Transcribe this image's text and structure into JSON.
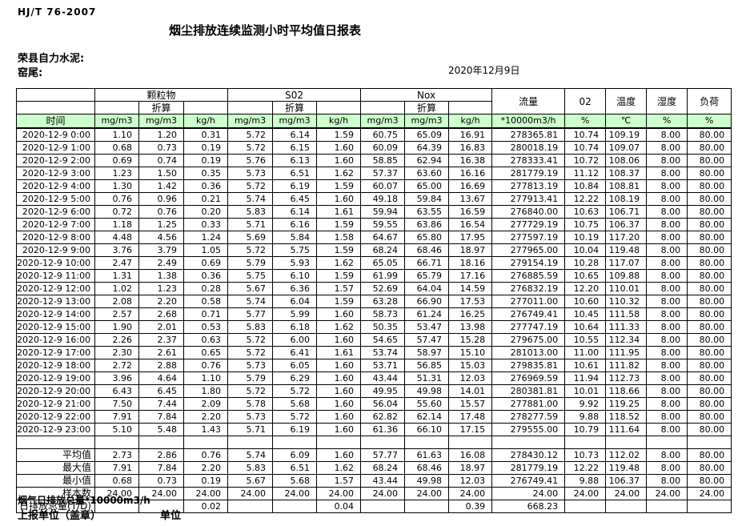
{
  "page": {
    "standard": "HJ/T  76-2007",
    "title": "烟尘排放连续监测小时平均值日报表",
    "company": "荣县自力水泥:",
    "location": "窑尾:",
    "date": "2020年12月9日",
    "footer_total_label": "烟气日排放总量*10000m3/h",
    "footer_report_unit": "上报单位（盖章）",
    "footer_unit": "单位"
  },
  "colors": {
    "header_green": "#ccffcc",
    "border": "#000000"
  },
  "table": {
    "header": {
      "time_label": "时间",
      "groups": [
        "颗粒物",
        "S02",
        "Nox"
      ],
      "converted": "折算",
      "flow": "流量",
      "o2": "02",
      "temperature": "温度",
      "humidity": "湿度",
      "load": "负荷",
      "units": [
        "mg/m3",
        "mg/m3",
        "kg/h",
        "mg/m3",
        "mg/m3",
        "kg/h",
        "mg/m3",
        "mg/m3",
        "kg/h",
        "*10000m3/h",
        "%",
        "℃",
        "%",
        "%"
      ]
    },
    "rows": [
      {
        "time": "2020-12-9 0:00",
        "values": [
          "1.10",
          "1.20",
          "0.31",
          "5.72",
          "6.14",
          "1.59",
          "60.75",
          "65.09",
          "16.91",
          "278365.81",
          "10.74",
          "109.19",
          "8.00",
          "80.00"
        ]
      },
      {
        "time": "2020-12-9 1:00",
        "values": [
          "0.68",
          "0.73",
          "0.19",
          "5.72",
          "6.15",
          "1.60",
          "60.09",
          "64.39",
          "16.83",
          "280018.19",
          "10.74",
          "109.07",
          "8.00",
          "80.00"
        ]
      },
      {
        "time": "2020-12-9 2:00",
        "values": [
          "0.69",
          "0.74",
          "0.19",
          "5.76",
          "6.13",
          "1.60",
          "58.85",
          "62.94",
          "16.38",
          "278333.41",
          "10.72",
          "108.06",
          "8.00",
          "80.00"
        ]
      },
      {
        "time": "2020-12-9 3:00",
        "values": [
          "1.23",
          "1.50",
          "0.35",
          "5.73",
          "6.51",
          "1.62",
          "57.37",
          "63.60",
          "16.16",
          "281779.19",
          "11.12",
          "108.37",
          "8.00",
          "80.00"
        ]
      },
      {
        "time": "2020-12-9 4:00",
        "values": [
          "1.30",
          "1.42",
          "0.36",
          "5.72",
          "6.19",
          "1.59",
          "60.07",
          "65.00",
          "16.69",
          "277813.19",
          "10.84",
          "108.81",
          "8.00",
          "80.00"
        ]
      },
      {
        "time": "2020-12-9 5:00",
        "values": [
          "0.76",
          "0.96",
          "0.21",
          "5.74",
          "6.45",
          "1.60",
          "49.18",
          "59.84",
          "13.67",
          "277913.41",
          "12.22",
          "108.19",
          "8.00",
          "80.00"
        ]
      },
      {
        "time": "2020-12-9 6:00",
        "values": [
          "0.72",
          "0.76",
          "0.20",
          "5.83",
          "6.14",
          "1.61",
          "59.94",
          "63.55",
          "16.59",
          "276840.00",
          "10.63",
          "106.71",
          "8.00",
          "80.00"
        ]
      },
      {
        "time": "2020-12-9 7:00",
        "values": [
          "1.18",
          "1.25",
          "0.33",
          "5.71",
          "6.16",
          "1.59",
          "59.55",
          "63.86",
          "16.54",
          "277729.19",
          "10.75",
          "106.37",
          "8.00",
          "80.00"
        ]
      },
      {
        "time": "2020-12-9 8:00",
        "values": [
          "4.48",
          "4.56",
          "1.24",
          "5.69",
          "5.84",
          "1.58",
          "64.67",
          "65.80",
          "17.95",
          "277597.19",
          "10.19",
          "117.20",
          "8.00",
          "80.00"
        ]
      },
      {
        "time": "2020-12-9 9:00",
        "values": [
          "3.76",
          "3.79",
          "1.05",
          "5.72",
          "5.75",
          "1.59",
          "68.24",
          "68.46",
          "18.97",
          "277965.00",
          "10.04",
          "119.48",
          "8.00",
          "80.00"
        ]
      },
      {
        "time": "2020-12-9 10:00",
        "values": [
          "2.47",
          "2.49",
          "0.69",
          "5.79",
          "5.93",
          "1.62",
          "65.05",
          "66.71",
          "18.16",
          "279154.19",
          "10.28",
          "117.07",
          "8.00",
          "80.00"
        ]
      },
      {
        "time": "2020-12-9 11:00",
        "values": [
          "1.31",
          "1.38",
          "0.36",
          "5.75",
          "6.10",
          "1.59",
          "61.99",
          "65.79",
          "17.16",
          "276885.59",
          "10.65",
          "109.88",
          "8.00",
          "80.00"
        ]
      },
      {
        "time": "2020-12-9 12:00",
        "values": [
          "1.02",
          "1.23",
          "0.28",
          "5.67",
          "6.36",
          "1.57",
          "52.69",
          "64.04",
          "14.59",
          "276832.19",
          "12.20",
          "110.01",
          "8.00",
          "80.00"
        ]
      },
      {
        "time": "2020-12-9 13:00",
        "values": [
          "2.08",
          "2.20",
          "0.58",
          "5.74",
          "6.04",
          "1.59",
          "63.28",
          "66.90",
          "17.53",
          "277011.00",
          "10.60",
          "110.32",
          "8.00",
          "80.00"
        ]
      },
      {
        "time": "2020-12-9 14:00",
        "values": [
          "2.57",
          "2.68",
          "0.71",
          "5.77",
          "5.99",
          "1.60",
          "58.73",
          "61.24",
          "16.25",
          "276749.41",
          "10.45",
          "111.58",
          "8.00",
          "80.00"
        ]
      },
      {
        "time": "2020-12-9 15:00",
        "values": [
          "1.90",
          "2.01",
          "0.53",
          "5.83",
          "6.18",
          "1.62",
          "50.35",
          "53.47",
          "13.98",
          "277747.19",
          "10.64",
          "111.33",
          "8.00",
          "80.00"
        ]
      },
      {
        "time": "2020-12-9 16:00",
        "values": [
          "2.26",
          "2.37",
          "0.63",
          "5.72",
          "6.00",
          "1.60",
          "54.65",
          "57.47",
          "15.28",
          "279675.00",
          "10.55",
          "112.34",
          "8.00",
          "80.00"
        ]
      },
      {
        "time": "2020-12-9 17:00",
        "values": [
          "2.30",
          "2.61",
          "0.65",
          "5.72",
          "6.41",
          "1.61",
          "53.74",
          "58.97",
          "15.10",
          "281013.00",
          "11.00",
          "111.95",
          "8.00",
          "80.00"
        ]
      },
      {
        "time": "2020-12-9 18:00",
        "values": [
          "2.72",
          "2.88",
          "0.76",
          "5.73",
          "6.05",
          "1.60",
          "53.71",
          "56.85",
          "15.03",
          "279835.81",
          "10.61",
          "111.82",
          "8.00",
          "80.00"
        ]
      },
      {
        "time": "2020-12-9 19:00",
        "values": [
          "3.96",
          "4.64",
          "1.10",
          "5.79",
          "6.29",
          "1.60",
          "43.44",
          "51.31",
          "12.03",
          "276969.59",
          "11.94",
          "112.73",
          "8.00",
          "80.00"
        ]
      },
      {
        "time": "2020-12-9 20:00",
        "values": [
          "6.43",
          "6.45",
          "1.80",
          "5.72",
          "5.72",
          "1.60",
          "49.95",
          "49.98",
          "14.01",
          "280381.81",
          "10.01",
          "118.66",
          "8.00",
          "80.00"
        ]
      },
      {
        "time": "2020-12-9 21:00",
        "values": [
          "7.50",
          "7.44",
          "2.09",
          "5.78",
          "5.68",
          "1.60",
          "56.04",
          "55.60",
          "15.57",
          "277881.00",
          "9.92",
          "119.25",
          "8.00",
          "80.00"
        ]
      },
      {
        "time": "2020-12-9 22:00",
        "values": [
          "7.91",
          "7.84",
          "2.20",
          "5.73",
          "5.72",
          "1.60",
          "62.82",
          "62.14",
          "17.48",
          "278277.59",
          "9.88",
          "118.52",
          "8.00",
          "80.00"
        ]
      },
      {
        "time": "2020-12-9 23:00",
        "values": [
          "5.10",
          "5.48",
          "1.43",
          "5.71",
          "6.19",
          "1.60",
          "61.36",
          "66.10",
          "17.15",
          "279555.00",
          "10.79",
          "111.64",
          "8.00",
          "80.00"
        ]
      }
    ],
    "summary": [
      {
        "label": "平均值",
        "values": [
          "2.73",
          "2.86",
          "0.76",
          "5.74",
          "6.09",
          "1.60",
          "57.77",
          "61.63",
          "16.08",
          "278430.12",
          "10.73",
          "112.02",
          "8.00",
          "80.00"
        ]
      },
      {
        "label": "最大值",
        "values": [
          "7.91",
          "7.84",
          "2.20",
          "5.83",
          "6.51",
          "1.62",
          "68.24",
          "68.46",
          "18.97",
          "281779.19",
          "12.22",
          "119.48",
          "8.00",
          "80.00"
        ]
      },
      {
        "label": "最小值",
        "values": [
          "0.68",
          "0.73",
          "0.19",
          "5.67",
          "5.68",
          "1.57",
          "43.44",
          "49.98",
          "12.03",
          "276749.41",
          "9.88",
          "106.37",
          "8.00",
          "80.00"
        ]
      },
      {
        "label": "样本数",
        "values": [
          "24.00",
          "24.00",
          "24.00",
          "24.00",
          "24.00",
          "24.00",
          "24.00",
          "24.00",
          "24.00",
          "24.00",
          "24.00",
          "24.00",
          "24.00",
          "24.00"
        ]
      },
      {
        "label": "日排放总量(T/D)",
        "values": [
          "",
          "",
          "0.02",
          "",
          "",
          "0.04",
          "",
          "",
          "0.39",
          "668.23",
          "",
          "",
          "",
          ""
        ]
      }
    ]
  }
}
